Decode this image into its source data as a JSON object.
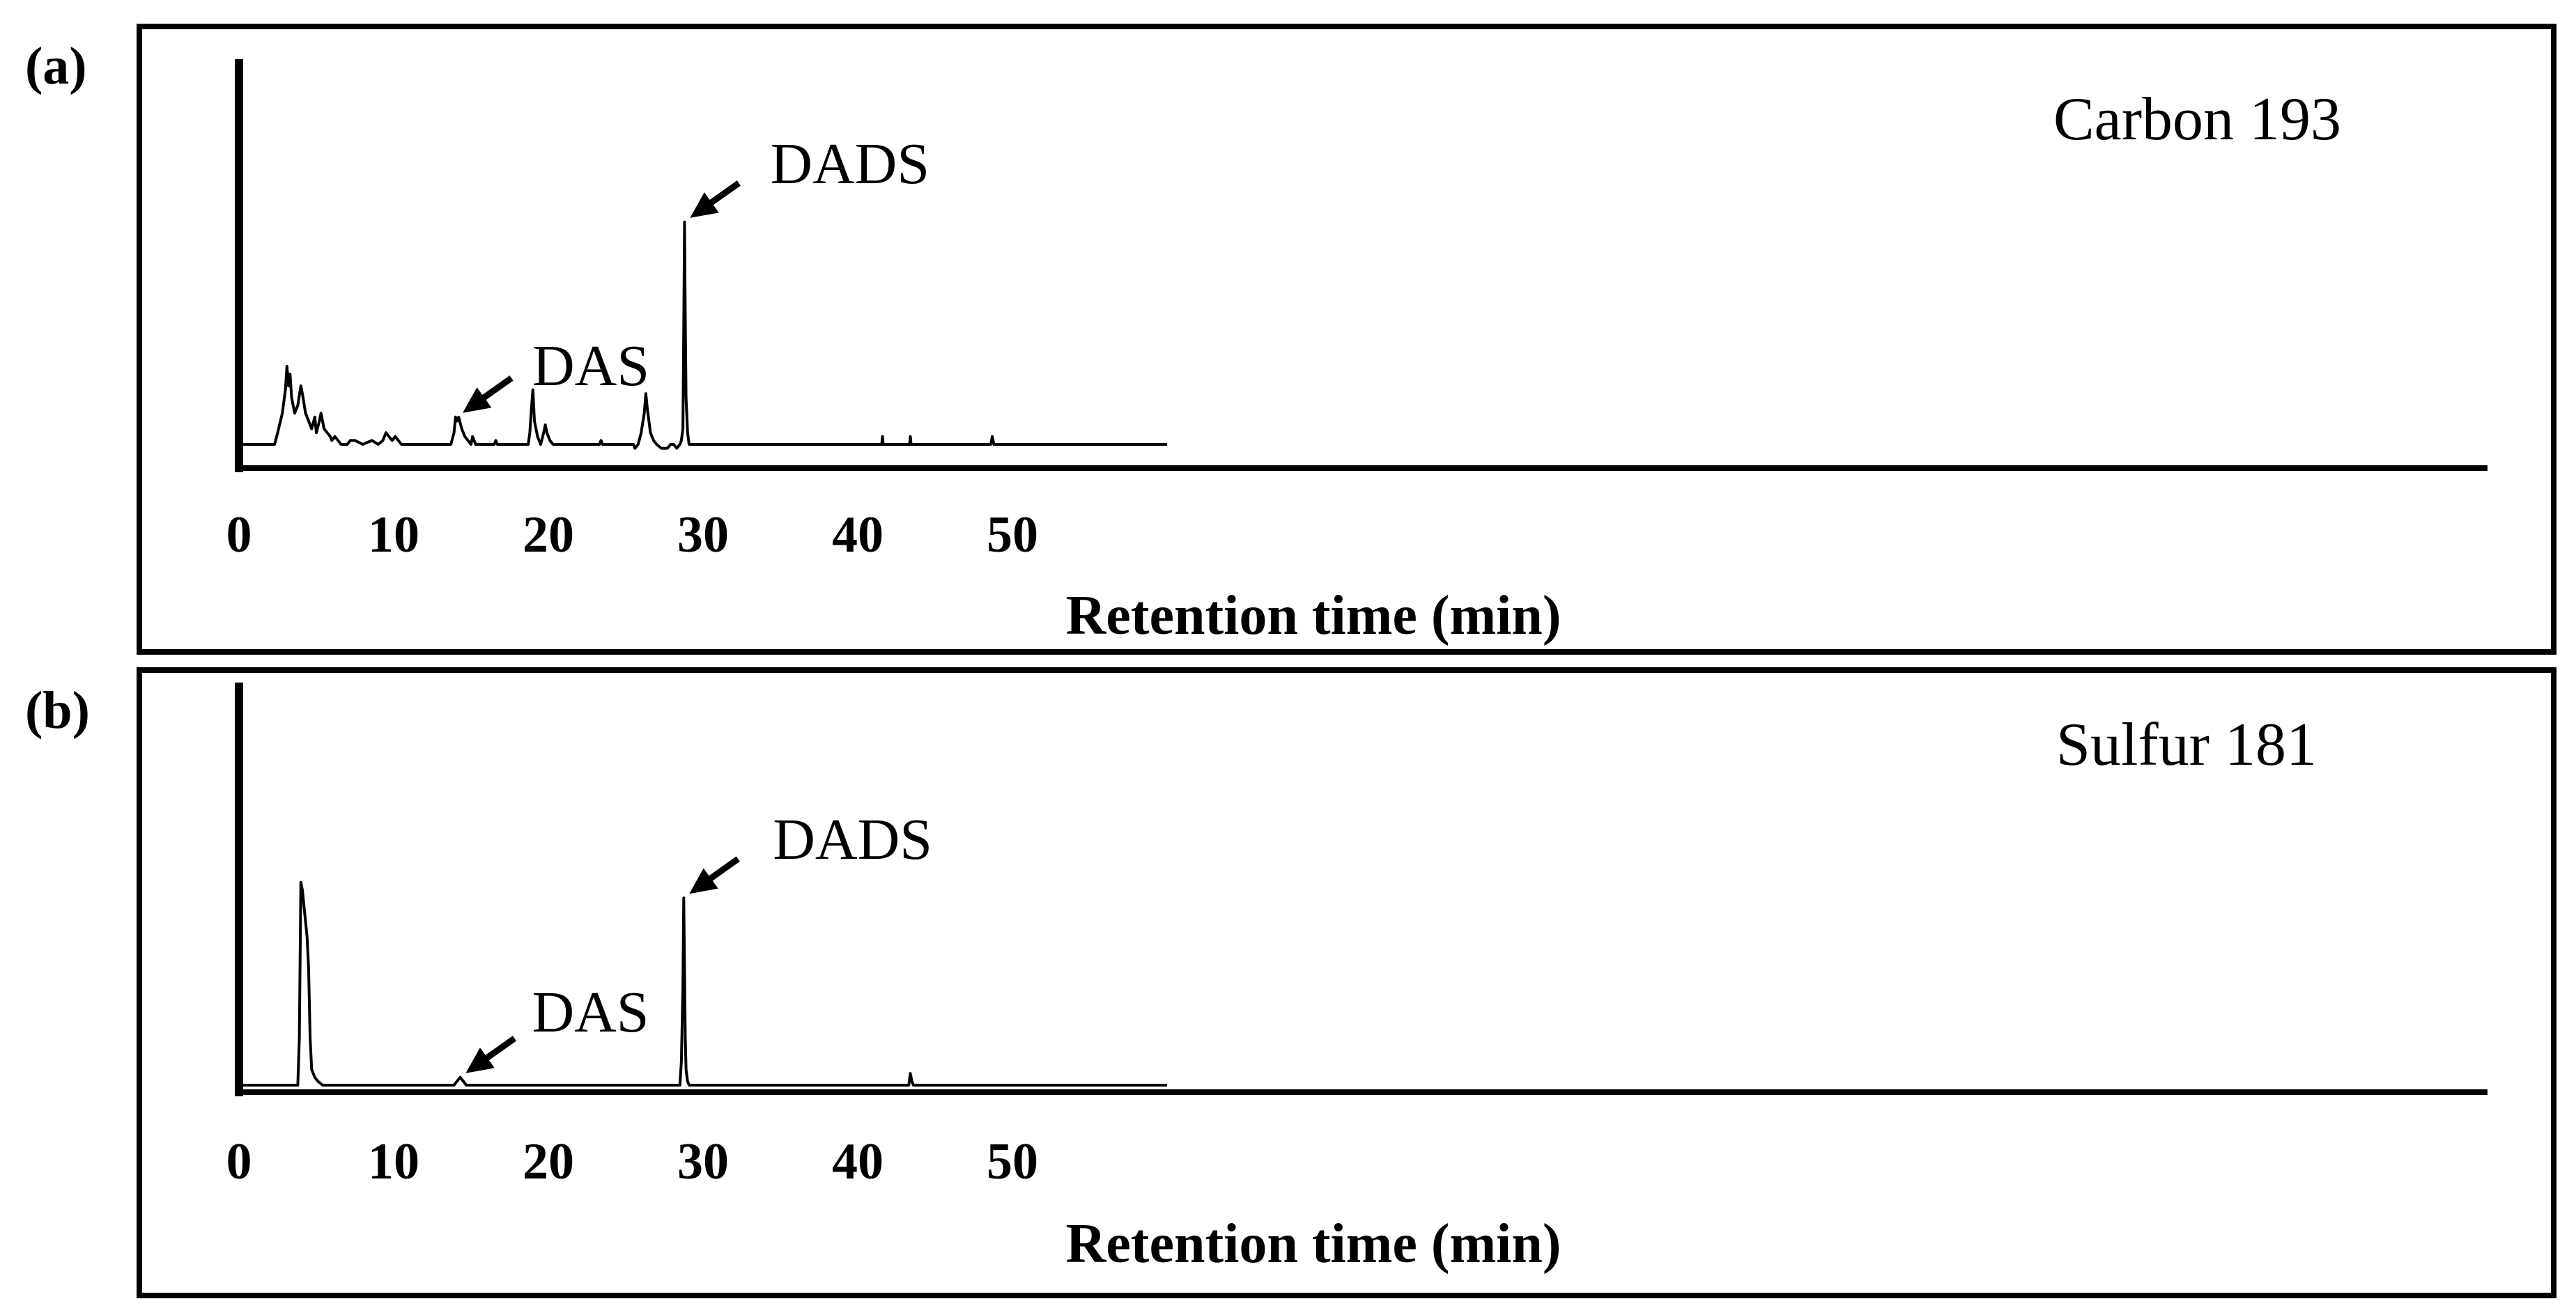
{
  "chart_data": [
    {
      "type": "line",
      "panel_label": "(a)",
      "detector_label": "Carbon 193",
      "xlabel": "Retention time (min)",
      "ylabel": "",
      "xlim": [
        0,
        60
      ],
      "ylim": [
        0,
        100
      ],
      "xticks": [
        "0",
        "10",
        "20",
        "30",
        "40",
        "50"
      ],
      "grid": false,
      "color": "#000000",
      "series": [
        {
          "x": [
            0,
            2.3,
            2.5,
            2.8,
            3.0,
            3.1,
            3.2,
            3.3,
            3.4,
            3.6,
            3.8,
            4.0,
            4.1,
            4.3,
            4.5,
            4.7,
            4.9,
            5.0,
            5.2,
            5.3,
            5.5,
            5.7,
            5.9,
            6.0,
            6.2,
            6.4,
            6.6,
            7.0,
            7.2,
            7.5,
            8.0,
            8.6,
            9.0,
            9.3,
            9.5,
            9.7,
            9.9,
            10.1,
            10.3,
            10.5,
            13.7,
            13.9,
            14.0,
            14.1,
            14.2,
            14.4,
            14.6,
            14.8,
            15.0,
            15.1,
            15.3,
            15.5,
            16.5,
            16.6,
            16.7,
            18.7,
            18.8,
            18.9,
            19.0,
            19.1,
            19.3,
            19.5,
            19.7,
            19.8,
            19.9,
            20.1,
            20.3,
            23.3,
            23.4,
            23.5,
            25.5,
            25.6,
            25.8,
            26.0,
            26.2,
            26.3,
            26.4,
            26.5,
            26.6,
            26.8,
            27.0,
            27.3,
            27.6,
            27.7,
            27.9,
            28.1,
            28.3,
            28.5,
            28.6,
            28.7,
            28.75,
            28.8,
            28.85,
            28.9,
            29.0,
            29.1,
            29.4,
            41.55,
            41.6,
            41.65,
            43.35,
            43.4,
            43.45,
            48.6,
            48.7,
            48.8,
            60.0
          ],
          "y": [
            0,
            0,
            3,
            8,
            14,
            20,
            15,
            18,
            12,
            8,
            10,
            15,
            13,
            8,
            6,
            4,
            7,
            3,
            6,
            8,
            4,
            3,
            2,
            1,
            2,
            1,
            0,
            0,
            1,
            1,
            0,
            1,
            0,
            1,
            3,
            2,
            1,
            2,
            1,
            0,
            0,
            3,
            7,
            6,
            7,
            4,
            2,
            1,
            0,
            2,
            0,
            0,
            0,
            1,
            0,
            0,
            3,
            9,
            14,
            6,
            2,
            0,
            3,
            5,
            3,
            1,
            0,
            0,
            1,
            0,
            0,
            -1,
            0,
            3,
            8,
            13,
            9,
            6,
            3,
            1,
            0,
            -1,
            -1,
            -1,
            0,
            0,
            -1,
            0,
            1,
            4,
            30,
            57,
            32,
            12,
            3,
            0,
            0,
            0,
            2,
            0,
            0,
            2,
            0,
            0,
            2,
            0,
            0
          ]
        }
      ],
      "annotations": [
        {
          "text": "DAS",
          "x": 14.1,
          "y": 7
        },
        {
          "text": "DADS",
          "x": 28.8,
          "y": 57
        }
      ]
    },
    {
      "type": "line",
      "panel_label": "(b)",
      "detector_label": "Sulfur 181",
      "xlabel": "Retention time (min)",
      "ylabel": "",
      "xlim": [
        0,
        60
      ],
      "ylim": [
        0,
        100
      ],
      "xticks": [
        "0",
        "10",
        "20",
        "30",
        "40",
        "50"
      ],
      "grid": false,
      "color": "#000000",
      "series": [
        {
          "x": [
            0,
            3.8,
            3.9,
            4.0,
            4.1,
            4.2,
            4.3,
            4.4,
            4.5,
            4.6,
            4.7,
            4.9,
            5.1,
            5.4,
            13.9,
            14.1,
            14.3,
            14.5,
            14.7,
            28.5,
            28.6,
            28.7,
            28.75,
            28.8,
            28.85,
            28.9,
            29.0,
            29.1,
            29.4,
            43.3,
            43.4,
            43.5,
            43.6,
            60.0
          ],
          "y": [
            0,
            0,
            12,
            52,
            50,
            46,
            42,
            38,
            30,
            12,
            4,
            2,
            1,
            0,
            0,
            1,
            2,
            1,
            0,
            0,
            6,
            25,
            48,
            30,
            12,
            4,
            1,
            0,
            0,
            0,
            3,
            1,
            0,
            0
          ]
        }
      ],
      "annotations": [
        {
          "text": "DAS",
          "x": 14.3,
          "y": 2
        },
        {
          "text": "DADS",
          "x": 28.75,
          "y": 48
        }
      ]
    }
  ]
}
